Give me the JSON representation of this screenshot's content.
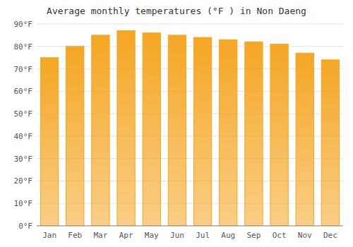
{
  "chart_data": {
    "type": "bar",
    "title": "Average monthly temperatures (°F ) in Non Daeng",
    "categories": [
      "Jan",
      "Feb",
      "Mar",
      "Apr",
      "May",
      "Jun",
      "Jul",
      "Aug",
      "Sep",
      "Oct",
      "Nov",
      "Dec"
    ],
    "values": [
      75,
      80,
      85,
      87,
      86,
      85,
      84,
      83,
      82,
      81,
      77,
      74
    ],
    "color": "#F5A623",
    "ylim": [
      0,
      90
    ],
    "yticks": [
      {
        "value": 0,
        "label": "0°F"
      },
      {
        "value": 10,
        "label": "10°F"
      },
      {
        "value": 20,
        "label": "20°F"
      },
      {
        "value": 30,
        "label": "30°F"
      },
      {
        "value": 40,
        "label": "40°F"
      },
      {
        "value": 50,
        "label": "50°F"
      },
      {
        "value": 60,
        "label": "60°F"
      },
      {
        "value": 70,
        "label": "70°F"
      },
      {
        "value": 80,
        "label": "80°F"
      },
      {
        "value": 90,
        "label": "90°F"
      }
    ],
    "grid": true
  }
}
